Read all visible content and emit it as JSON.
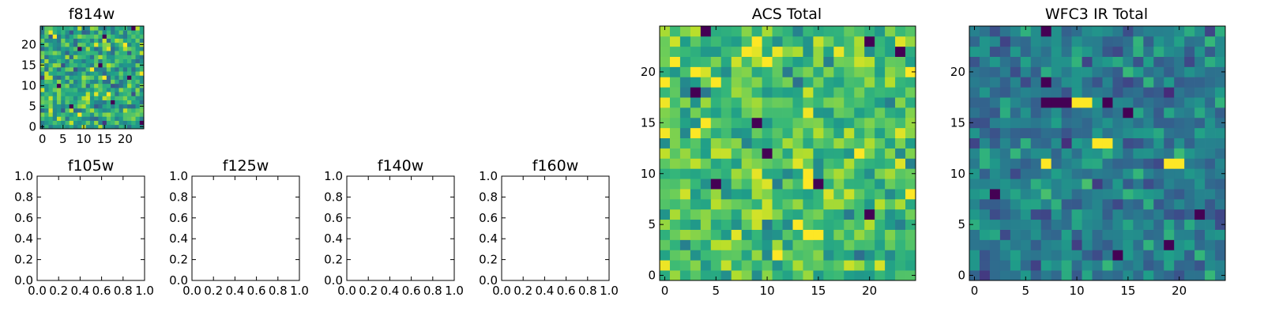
{
  "chart_data": [
    {
      "type": "heatmap",
      "title": "f814w",
      "colormap": "viridis",
      "grid_size": 25,
      "xlim": [
        -0.5,
        24.5
      ],
      "ylim": [
        -0.5,
        24.5
      ],
      "xticks": [
        0,
        5,
        10,
        15,
        20
      ],
      "yticks": [
        0,
        5,
        10,
        15,
        20
      ],
      "seed": 11,
      "mean": 0.6,
      "spread": 0.16,
      "dark_cells": [
        [
          22,
          24
        ],
        [
          9,
          19
        ],
        [
          14,
          15
        ],
        [
          21,
          12
        ],
        [
          4,
          10
        ],
        [
          17,
          6
        ],
        [
          24,
          1
        ],
        [
          7,
          5
        ],
        [
          15,
          22
        ]
      ],
      "bright_cells": [
        [
          3,
          22
        ],
        [
          12,
          14
        ],
        [
          16,
          8
        ],
        [
          9,
          3
        ],
        [
          20,
          20
        ]
      ]
    },
    {
      "type": "heatmap",
      "title": "f105w",
      "empty": true,
      "xlim": [
        0,
        1
      ],
      "ylim": [
        0,
        1
      ],
      "xticks": [
        "0.0",
        "0.2",
        "0.4",
        "0.6",
        "0.8",
        "1.0"
      ],
      "yticks": [
        "0.0",
        "0.2",
        "0.4",
        "0.6",
        "0.8",
        "1.0"
      ]
    },
    {
      "type": "heatmap",
      "title": "f125w",
      "empty": true,
      "xlim": [
        0,
        1
      ],
      "ylim": [
        0,
        1
      ],
      "xticks": [
        "0.0",
        "0.2",
        "0.4",
        "0.6",
        "0.8",
        "1.0"
      ],
      "yticks": [
        "0.0",
        "0.2",
        "0.4",
        "0.6",
        "0.8",
        "1.0"
      ]
    },
    {
      "type": "heatmap",
      "title": "f140w",
      "empty": true,
      "xlim": [
        0,
        1
      ],
      "ylim": [
        0,
        1
      ],
      "xticks": [
        "0.0",
        "0.2",
        "0.4",
        "0.6",
        "0.8",
        "1.0"
      ],
      "yticks": [
        "0.0",
        "0.2",
        "0.4",
        "0.6",
        "0.8",
        "1.0"
      ]
    },
    {
      "type": "heatmap",
      "title": "f160w",
      "empty": true,
      "xlim": [
        0,
        1
      ],
      "ylim": [
        0,
        1
      ],
      "xticks": [
        "0.0",
        "0.2",
        "0.4",
        "0.6",
        "0.8",
        "1.0"
      ],
      "yticks": [
        "0.0",
        "0.2",
        "0.4",
        "0.6",
        "0.8",
        "1.0"
      ]
    },
    {
      "type": "heatmap",
      "title": "ACS Total",
      "colormap": "viridis",
      "grid_size": 25,
      "xlim": [
        -0.5,
        24.5
      ],
      "ylim": [
        -0.5,
        24.5
      ],
      "xticks": [
        0,
        5,
        10,
        15,
        20
      ],
      "yticks": [
        0,
        5,
        10,
        15,
        20
      ],
      "seed": 23,
      "mean": 0.7,
      "spread": 0.13,
      "dark_cells": [
        [
          4,
          24
        ],
        [
          20,
          23
        ],
        [
          23,
          22
        ],
        [
          9,
          15
        ],
        [
          10,
          12
        ],
        [
          5,
          9
        ],
        [
          15,
          9
        ],
        [
          20,
          6
        ],
        [
          3,
          18
        ]
      ],
      "bright_cells": [
        [
          9,
          23
        ],
        [
          0,
          19
        ],
        [
          3,
          20
        ],
        [
          10,
          21
        ],
        [
          3,
          14
        ],
        [
          4,
          15
        ],
        [
          19,
          12
        ],
        [
          14,
          9
        ],
        [
          14,
          4
        ],
        [
          15,
          4
        ],
        [
          13,
          5
        ]
      ]
    },
    {
      "type": "heatmap",
      "title": "WFC3 IR Total",
      "colormap": "viridis",
      "grid_size": 25,
      "xlim": [
        -0.5,
        24.5
      ],
      "ylim": [
        -0.5,
        24.5
      ],
      "xticks": [
        0,
        5,
        10,
        15,
        20
      ],
      "yticks": [
        0,
        5,
        10,
        15,
        20
      ],
      "seed": 37,
      "mean": 0.42,
      "spread": 0.11,
      "dark_cells": [
        [
          7,
          24
        ],
        [
          7,
          19
        ],
        [
          7,
          17
        ],
        [
          8,
          17
        ],
        [
          9,
          17
        ],
        [
          13,
          17
        ],
        [
          15,
          16
        ],
        [
          2,
          8
        ],
        [
          14,
          2
        ],
        [
          19,
          3
        ],
        [
          22,
          6
        ]
      ],
      "bright_cells": [
        [
          10,
          17
        ],
        [
          11,
          17
        ],
        [
          12,
          13
        ],
        [
          13,
          13
        ],
        [
          7,
          11
        ],
        [
          19,
          11
        ],
        [
          20,
          11
        ]
      ]
    }
  ]
}
